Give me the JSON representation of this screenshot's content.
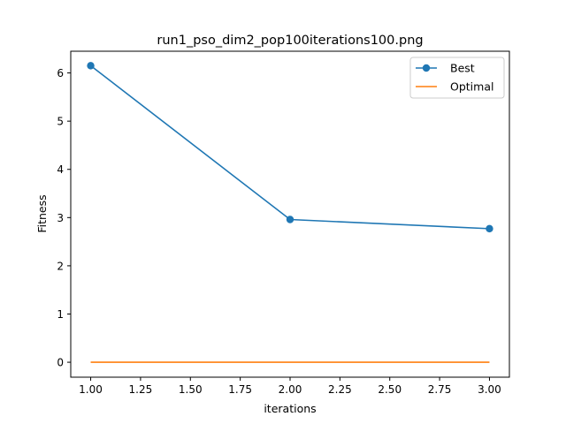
{
  "chart_data": {
    "type": "line",
    "title": "run1_pso_dim2_pop100iterations100.png",
    "xlabel": "iterations",
    "ylabel": "Fitness",
    "xlim": [
      0.9,
      3.1
    ],
    "ylim": [
      -0.31,
      6.45
    ],
    "x_ticks": [
      1.0,
      1.25,
      1.5,
      1.75,
      2.0,
      2.25,
      2.5,
      2.75,
      3.0
    ],
    "x_tick_labels": [
      "1.00",
      "1.25",
      "1.50",
      "1.75",
      "2.00",
      "2.25",
      "2.50",
      "2.75",
      "3.00"
    ],
    "y_ticks": [
      0,
      1,
      2,
      3,
      4,
      5,
      6
    ],
    "y_tick_labels": [
      "0",
      "1",
      "2",
      "3",
      "4",
      "5",
      "6"
    ],
    "grid": false,
    "legend_position": "top-right",
    "series": [
      {
        "name": "Best",
        "x": [
          1,
          2,
          3
        ],
        "values": [
          6.15,
          2.96,
          2.77
        ],
        "color": "#1f77b4",
        "marker": "circle"
      },
      {
        "name": "Optimal",
        "x": [
          1,
          2,
          3
        ],
        "values": [
          0,
          0,
          0
        ],
        "color": "#ff7f0e",
        "marker": "none"
      }
    ]
  }
}
